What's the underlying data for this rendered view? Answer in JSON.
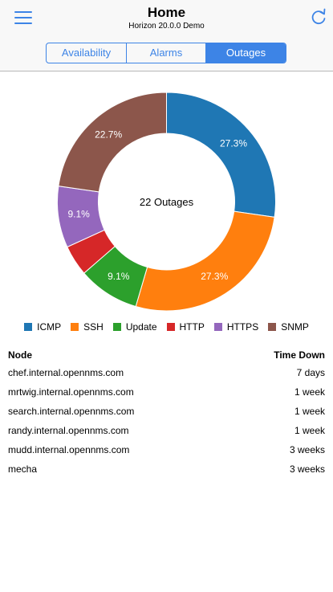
{
  "header": {
    "title": "Home",
    "subtitle": "Horizon 20.0.0 Demo",
    "menu_icon": "hamburger-menu-icon",
    "refresh_icon": "refresh-icon"
  },
  "tabs": [
    {
      "label": "Availability",
      "active": false
    },
    {
      "label": "Alarms",
      "active": false
    },
    {
      "label": "Outages",
      "active": true
    }
  ],
  "chart_data": {
    "type": "pie",
    "center_label": "22 Outages",
    "categories": [
      "ICMP",
      "SSH",
      "Update",
      "HTTP",
      "HTTPS",
      "SNMP"
    ],
    "values": [
      6,
      6,
      2,
      1,
      2,
      5
    ],
    "slice_labels": [
      "27.3%",
      "27.3%",
      "9.1%",
      "",
      "9.1%",
      "22.7%"
    ],
    "colors": [
      "#1f77b4",
      "#ff7f0e",
      "#2ca02c",
      "#d62728",
      "#9467bd",
      "#8c564b"
    ],
    "legend_position": "bottom"
  },
  "outages_table": {
    "headers": {
      "node": "Node",
      "time_down": "Time Down"
    },
    "rows": [
      {
        "node": "chef.internal.opennms.com",
        "time_down": "7 days"
      },
      {
        "node": "mrtwig.internal.opennms.com",
        "time_down": "1 week"
      },
      {
        "node": "search.internal.opennms.com",
        "time_down": "1 week"
      },
      {
        "node": "randy.internal.opennms.com",
        "time_down": "1 week"
      },
      {
        "node": "mudd.internal.opennms.com",
        "time_down": "3 weeks"
      },
      {
        "node": "mecha",
        "time_down": "3 weeks"
      }
    ]
  },
  "colors": {
    "accent": "#3d84e6",
    "header_bg": "#f8f8f8"
  }
}
